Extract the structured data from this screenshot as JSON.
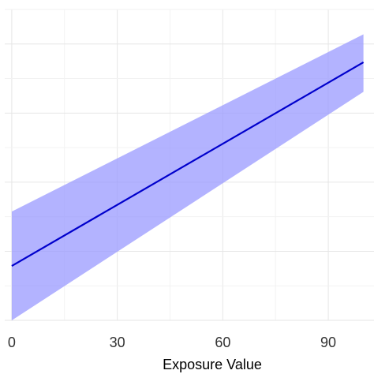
{
  "chart_data": {
    "type": "line",
    "title": "",
    "xlabel": "Exposure Value",
    "ylabel": "",
    "x_ticks": [
      0,
      30,
      60,
      90
    ],
    "xlim": [
      -2,
      103
    ],
    "ylim": [
      0,
      1
    ],
    "grid": true,
    "legend": "none",
    "series": [
      {
        "x": [
          0,
          100
        ],
        "fit": [
          0.175,
          0.83
        ],
        "lower": [
          0.0,
          0.735
        ],
        "upper": [
          0.35,
          0.92
        ],
        "fit_color": "#0000cc",
        "band_color": "#9999ff"
      }
    ]
  }
}
